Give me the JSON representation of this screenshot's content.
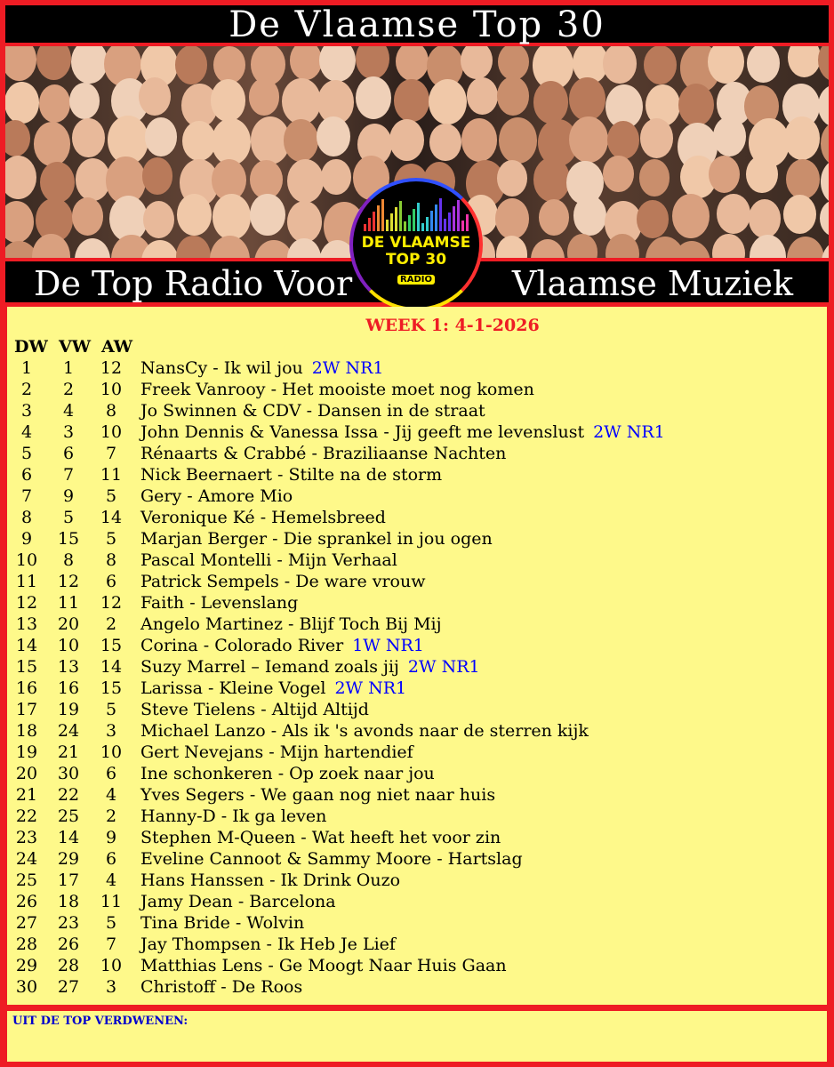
{
  "header": {
    "title": "De Vlaamse Top 30"
  },
  "subheader": {
    "left": "De Top Radio Voor",
    "right": "Vlaamse Muziek"
  },
  "logo": {
    "line1": "DE VLAAMSE",
    "line2": "TOP 30",
    "radio": "RADIO"
  },
  "chart": {
    "week": "WEEK 1: 4-1-2026",
    "columns": [
      "DW",
      "VW",
      "AW"
    ],
    "rows": [
      {
        "dw": "1",
        "vw": "1",
        "aw": "12",
        "song": "NansCy - Ik wil jou",
        "badge": "2W NR1"
      },
      {
        "dw": "2",
        "vw": "2",
        "aw": "10",
        "song": "Freek Vanrooy - Het mooiste moet nog komen",
        "badge": ""
      },
      {
        "dw": "3",
        "vw": "4",
        "aw": "8",
        "song": "Jo Swinnen & CDV - Dansen in de straat",
        "badge": ""
      },
      {
        "dw": "4",
        "vw": "3",
        "aw": "10",
        "song": "John Dennis & Vanessa Issa - Jij geeft me levenslust",
        "badge": "2W NR1"
      },
      {
        "dw": "5",
        "vw": "6",
        "aw": "7",
        "song": "Rénaarts & Crabbé - Braziliaanse Nachten",
        "badge": ""
      },
      {
        "dw": "6",
        "vw": "7",
        "aw": "11",
        "song": "Nick Beernaert - Stilte na de storm",
        "badge": ""
      },
      {
        "dw": "7",
        "vw": "9",
        "aw": "5",
        "song": "Gery - Amore Mio",
        "badge": ""
      },
      {
        "dw": "8",
        "vw": "5",
        "aw": "14",
        "song": "Veronique Ké - Hemelsbreed",
        "badge": ""
      },
      {
        "dw": "9",
        "vw": "15",
        "aw": "5",
        "song": "Marjan Berger - Die sprankel in jou ogen",
        "badge": ""
      },
      {
        "dw": "10",
        "vw": "8",
        "aw": "8",
        "song": "Pascal Montelli - Mijn Verhaal",
        "badge": ""
      },
      {
        "dw": "11",
        "vw": "12",
        "aw": "6",
        "song": "Patrick Sempels - De ware vrouw",
        "badge": ""
      },
      {
        "dw": "12",
        "vw": "11",
        "aw": "12",
        "song": "Faith - Levenslang",
        "badge": ""
      },
      {
        "dw": "13",
        "vw": "20",
        "aw": "2",
        "song": "Angelo Martinez - Blijf Toch Bij Mij",
        "badge": ""
      },
      {
        "dw": "14",
        "vw": "10",
        "aw": "15",
        "song": "Corina - Colorado River",
        "badge": "1W NR1"
      },
      {
        "dw": "15",
        "vw": "13",
        "aw": "14",
        "song": "Suzy Marrel – Iemand zoals jij",
        "badge": "2W NR1"
      },
      {
        "dw": "16",
        "vw": "16",
        "aw": "15",
        "song": "Larissa - Kleine Vogel",
        "badge": "2W NR1"
      },
      {
        "dw": "17",
        "vw": "19",
        "aw": "5",
        "song": "Steve Tielens - Altijd Altijd",
        "badge": ""
      },
      {
        "dw": "18",
        "vw": "24",
        "aw": "3",
        "song": "Michael Lanzo - Als ik 's avonds naar de sterren kijk",
        "badge": ""
      },
      {
        "dw": "19",
        "vw": "21",
        "aw": "10",
        "song": "Gert Nevejans - Mijn hartendief",
        "badge": ""
      },
      {
        "dw": "20",
        "vw": "30",
        "aw": "6",
        "song": "Ine schonkeren - Op zoek naar jou",
        "badge": ""
      },
      {
        "dw": "21",
        "vw": "22",
        "aw": "4",
        "song": "Yves Segers - We gaan nog niet naar huis",
        "badge": ""
      },
      {
        "dw": "22",
        "vw": "25",
        "aw": "2",
        "song": "Hanny-D - Ik ga leven",
        "badge": ""
      },
      {
        "dw": "23",
        "vw": "14",
        "aw": "9",
        "song": "Stephen M-Queen - Wat heeft het voor zin",
        "badge": ""
      },
      {
        "dw": "24",
        "vw": "29",
        "aw": "6",
        "song": "Eveline Cannoot & Sammy Moore - Hartslag",
        "badge": ""
      },
      {
        "dw": "25",
        "vw": "17",
        "aw": "4",
        "song": "Hans Hanssen - Ik Drink Ouzo",
        "badge": ""
      },
      {
        "dw": "26",
        "vw": "18",
        "aw": "11",
        "song": "Jamy Dean - Barcelona",
        "badge": ""
      },
      {
        "dw": "27",
        "vw": "23",
        "aw": "5",
        "song": "Tina Bride - Wolvin",
        "badge": ""
      },
      {
        "dw": "28",
        "vw": "26",
        "aw": "7",
        "song": "Jay Thompsen - Ik Heb Je Lief",
        "badge": ""
      },
      {
        "dw": "29",
        "vw": "28",
        "aw": "10",
        "song": "Matthias Lens - Ge Moogt Naar Huis Gaan",
        "badge": ""
      },
      {
        "dw": "30",
        "vw": "27",
        "aw": "3",
        "song": "Christoff - De Roos",
        "badge": ""
      }
    ]
  },
  "footer": {
    "label": "UIT DE TOP VERDWENEN:"
  },
  "colors": {
    "frame": "#ee1c24",
    "panel": "#fef98a",
    "badge": "#0000ff",
    "week": "#ee1c24"
  }
}
